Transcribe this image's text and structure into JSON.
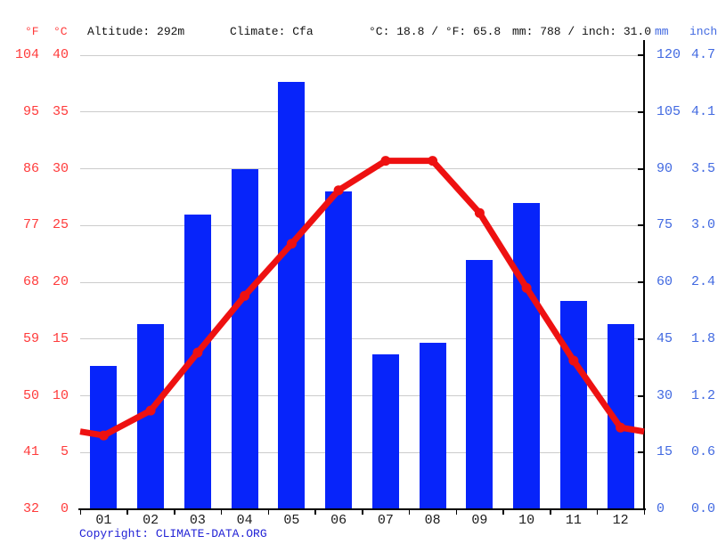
{
  "header": {
    "f_label": "°F",
    "c_label": "°C",
    "altitude": "Altitude: 292m",
    "climate": "Climate: Cfa",
    "temperature_summary": "°C: 18.8 / °F: 65.8",
    "precipitation_summary": "mm: 788 / inch: 31.0",
    "mm_label": "mm",
    "inch_label": "inch"
  },
  "footer": {
    "copyright_prefix": "Copyright: ",
    "copyright_link": "CLIMATE-DATA.ORG"
  },
  "colors": {
    "bar_blue": "#0724fa",
    "line_red": "#ee1111",
    "axis_red_text": "#ff3b3b",
    "axis_blue_text": "#4169e1",
    "grid_gray": "#cccccc",
    "link_blue": "#2222d6",
    "text_black": "#111111"
  },
  "chart_data": {
    "type": "bar+line",
    "title": "",
    "categories": [
      "01",
      "02",
      "03",
      "04",
      "05",
      "06",
      "07",
      "08",
      "09",
      "10",
      "11",
      "12"
    ],
    "series": [
      {
        "name": "precipitation_mm",
        "type": "bar",
        "values": [
          38,
          49,
          78,
          90,
          113,
          84,
          41,
          44,
          66,
          81,
          55,
          49
        ]
      },
      {
        "name": "temperature_c",
        "type": "line",
        "values": [
          6.5,
          8.7,
          13.8,
          18.8,
          23.4,
          28.1,
          30.7,
          30.7,
          26.1,
          19.5,
          13.1,
          7.2
        ]
      }
    ],
    "axes": {
      "left_fahrenheit": {
        "title": "°F",
        "ticks": [
          "104",
          "95",
          "86",
          "77",
          "68",
          "59",
          "50",
          "41",
          "32"
        ]
      },
      "left_celsius": {
        "title": "°C",
        "ticks": [
          "40",
          "35",
          "30",
          "25",
          "20",
          "15",
          "10",
          "5",
          "0"
        ],
        "range": [
          0,
          40
        ]
      },
      "right_mm": {
        "title": "mm",
        "ticks": [
          "120",
          "105",
          "90",
          "75",
          "60",
          "45",
          "30",
          "15",
          "0"
        ],
        "range": [
          0,
          120
        ]
      },
      "right_inch": {
        "title": "inch",
        "ticks": [
          "4.7",
          "4.1",
          "3.5",
          "3.0",
          "2.4",
          "1.8",
          "1.2",
          "0.6",
          "0.0"
        ]
      }
    },
    "grid": true,
    "legend": "none"
  }
}
